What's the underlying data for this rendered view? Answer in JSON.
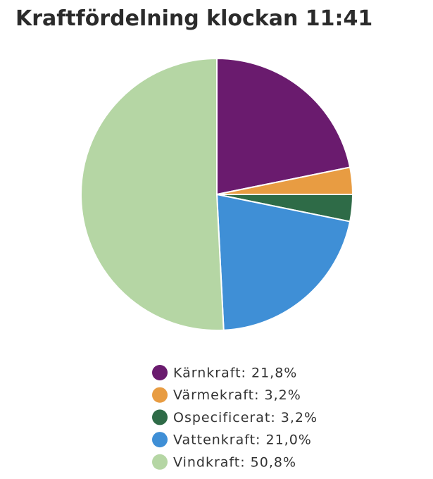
{
  "chart_data": {
    "type": "pie",
    "title": "Kraftfördelning klockan 11:41",
    "categories": [
      "Kärnkraft: 21,8%",
      "Värmekraft: 3,2%",
      "Ospecificerat: 3,2%",
      "Vattenkraft: 21,0%",
      "Vindkraft: 50,8%"
    ],
    "values": [
      21.8,
      3.2,
      3.2,
      21.0,
      50.8
    ],
    "colors": [
      "#6a1b6e",
      "#e89c42",
      "#2e6b47",
      "#3f8fd6",
      "#b5d6a4"
    ]
  }
}
